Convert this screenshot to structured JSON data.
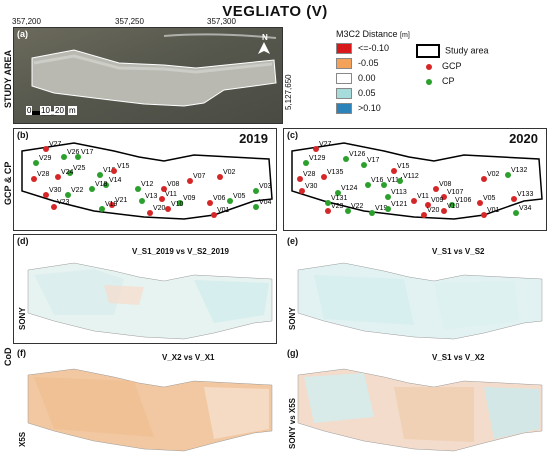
{
  "title": "VEGLIATO (V)",
  "coords": {
    "x1": "357,200",
    "x2": "357,250",
    "x3": "357,300",
    "y1": "5,127,650"
  },
  "side_labels": {
    "study_area": "STUDY AREA",
    "gcp_cp": "GCP & CP",
    "cod": "CoD"
  },
  "panels": {
    "a": "(a)",
    "b": "(b)",
    "c": "(c)",
    "d": "(d)",
    "e": "(e)",
    "f": "(f)",
    "g": "(g)"
  },
  "years": {
    "b": "2019",
    "c": "2020"
  },
  "comparisons": {
    "d": "V_S1_2019 vs V_S2_2019",
    "e": "V_S1 vs V_S2",
    "f": "V_X2 vs V_X1",
    "g": "V_S1 vs V_X2"
  },
  "sensors": {
    "d": "SONY",
    "e": "SONY",
    "f": "X5S",
    "g": "SONY vs X5S"
  },
  "scale": {
    "labels": [
      "0",
      "10",
      "20"
    ],
    "unit": "m"
  },
  "north": "N",
  "legend": {
    "title": "M3C2 Distance",
    "unit": "[m]",
    "items": [
      {
        "label": "<=-0.10",
        "color": "#d7191c"
      },
      {
        "label": "-0.05",
        "color": "#f4a259"
      },
      {
        "label": "0.00",
        "color": "#ffffff"
      },
      {
        "label": "0.05",
        "color": "#a6dcdc"
      },
      {
        "label": ">0.10",
        "color": "#2b83ba"
      }
    ],
    "study_area": "Study area",
    "gcp": "GCP",
    "cp": "CP",
    "gcp_color": "#d62728",
    "cp_color": "#2ca02c"
  },
  "points_2019": [
    {
      "id": "V27",
      "t": "gcp"
    },
    {
      "id": "V26",
      "t": "cp"
    },
    {
      "id": "V29",
      "t": "cp"
    },
    {
      "id": "V25",
      "t": "cp"
    },
    {
      "id": "V28",
      "t": "gcp"
    },
    {
      "id": "V24",
      "t": "gcp"
    },
    {
      "id": "V16",
      "t": "cp"
    },
    {
      "id": "V15",
      "t": "gcp"
    },
    {
      "id": "V14",
      "t": "cp"
    },
    {
      "id": "V17",
      "t": "cp"
    },
    {
      "id": "V30",
      "t": "gcp"
    },
    {
      "id": "V22",
      "t": "cp"
    },
    {
      "id": "V18",
      "t": "cp"
    },
    {
      "id": "V12",
      "t": "cp"
    },
    {
      "id": "V07",
      "t": "gcp"
    },
    {
      "id": "V02",
      "t": "gcp"
    },
    {
      "id": "V08",
      "t": "gcp"
    },
    {
      "id": "V03",
      "t": "cp"
    },
    {
      "id": "V23",
      "t": "gcp"
    },
    {
      "id": "V21",
      "t": "gcp"
    },
    {
      "id": "V13",
      "t": "cp"
    },
    {
      "id": "V11",
      "t": "gcp"
    },
    {
      "id": "V09",
      "t": "cp"
    },
    {
      "id": "V06",
      "t": "gcp"
    },
    {
      "id": "V05",
      "t": "cp"
    },
    {
      "id": "V19",
      "t": "cp"
    },
    {
      "id": "V20",
      "t": "gcp"
    },
    {
      "id": "V10",
      "t": "gcp"
    },
    {
      "id": "V01",
      "t": "gcp"
    },
    {
      "id": "V04",
      "t": "cp"
    }
  ],
  "points_2020": [
    {
      "id": "V27",
      "t": "gcp"
    },
    {
      "id": "V126",
      "t": "cp"
    },
    {
      "id": "V129",
      "t": "cp"
    },
    {
      "id": "V17",
      "t": "cp"
    },
    {
      "id": "V15",
      "t": "gcp"
    },
    {
      "id": "V28",
      "t": "gcp"
    },
    {
      "id": "V135",
      "t": "gcp"
    },
    {
      "id": "V16",
      "t": "cp"
    },
    {
      "id": "V114",
      "t": "cp"
    },
    {
      "id": "V112",
      "t": "cp"
    },
    {
      "id": "V30",
      "t": "gcp"
    },
    {
      "id": "V124",
      "t": "cp"
    },
    {
      "id": "V131",
      "t": "cp"
    },
    {
      "id": "V113",
      "t": "cp"
    },
    {
      "id": "V08",
      "t": "gcp"
    },
    {
      "id": "V02",
      "t": "gcp"
    },
    {
      "id": "V132",
      "t": "cp"
    },
    {
      "id": "V107",
      "t": "gcp"
    },
    {
      "id": "V23",
      "t": "gcp"
    },
    {
      "id": "V22",
      "t": "cp"
    },
    {
      "id": "V19",
      "t": "cp"
    },
    {
      "id": "V121",
      "t": "cp"
    },
    {
      "id": "V11",
      "t": "gcp"
    },
    {
      "id": "V09",
      "t": "gcp"
    },
    {
      "id": "V106",
      "t": "cp"
    },
    {
      "id": "V05",
      "t": "gcp"
    },
    {
      "id": "V133",
      "t": "gcp"
    },
    {
      "id": "V20",
      "t": "gcp"
    },
    {
      "id": "V10",
      "t": "gcp"
    },
    {
      "id": "V01",
      "t": "gcp"
    },
    {
      "id": "V34",
      "t": "cp"
    }
  ]
}
